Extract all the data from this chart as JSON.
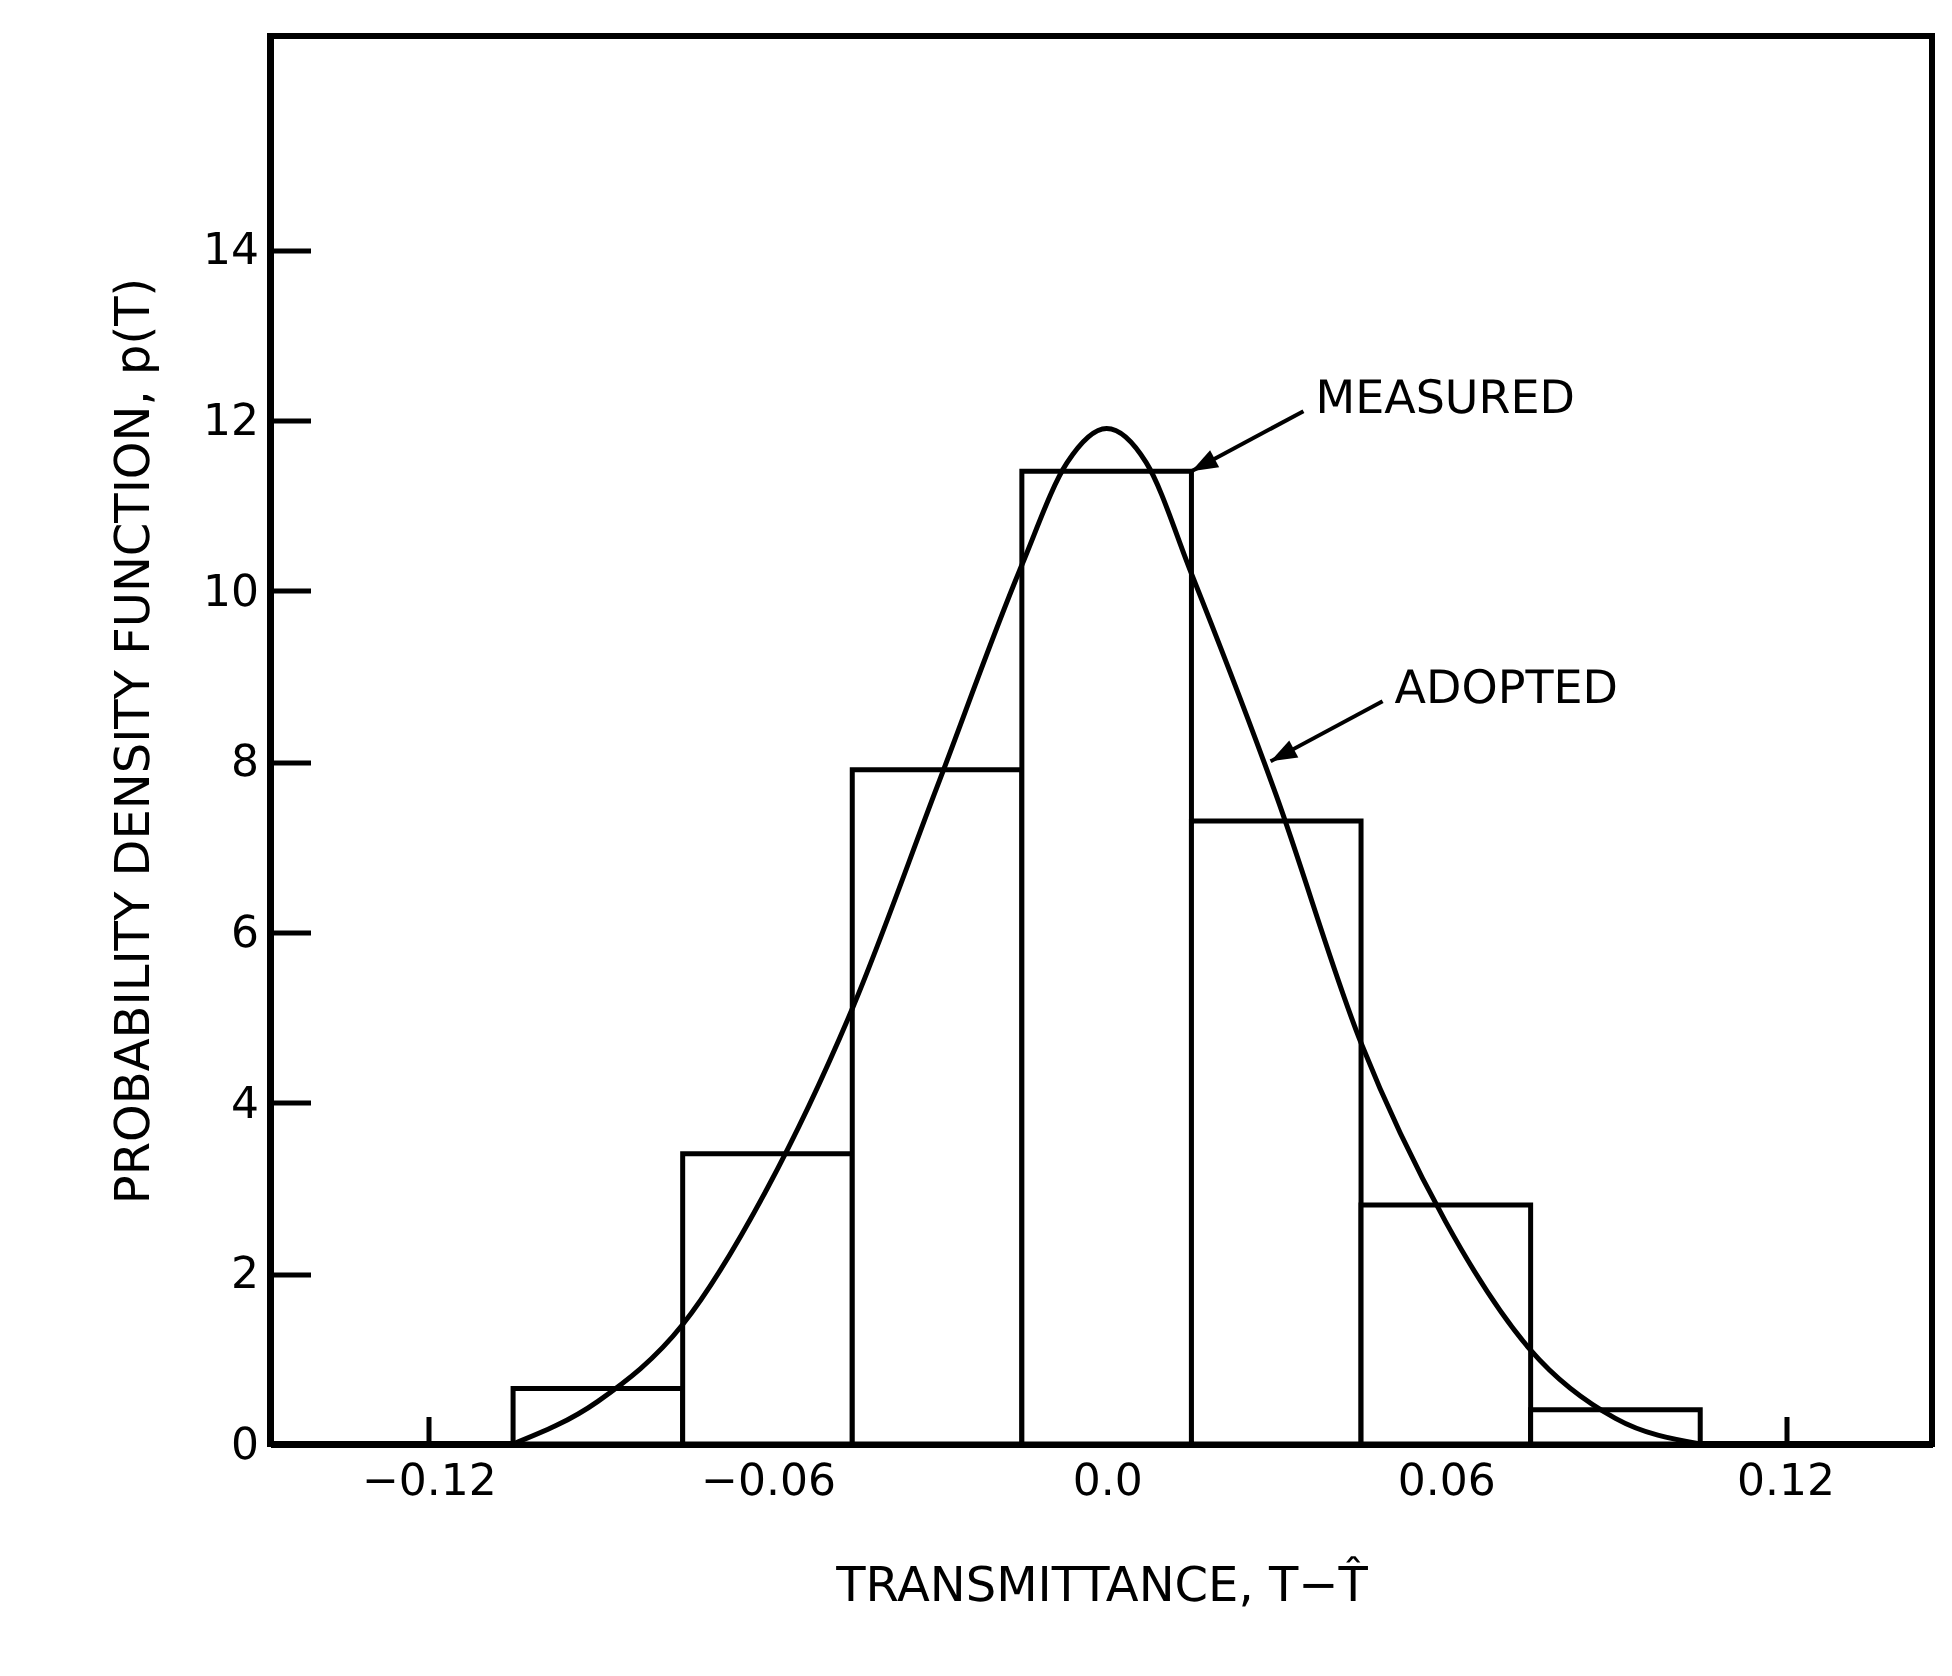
{
  "chart_data": {
    "type": "histogram",
    "xlabel": "TRANSMITTANCE, T−T̂",
    "ylabel": "PROBABILITY DENSITY FUNCTION, p(T)",
    "series": [
      {
        "color": "#000000",
        "bins": [
          -0.105,
          -0.075,
          -0.045,
          -0.015,
          0.015,
          0.045,
          0.075,
          0.105
        ],
        "values": [
          0.65,
          3.4,
          7.9,
          11.4,
          7.3,
          2.8,
          0.4
        ]
      },
      {
        "type": "line",
        "color": "#000000",
        "x": [
          -0.105,
          -0.09,
          -0.075,
          -0.06,
          -0.045,
          -0.03,
          -0.015,
          -0.007,
          0,
          0.007,
          0.015,
          0.03,
          0.045,
          0.06,
          0.075,
          0.09,
          0.105
        ],
        "values": [
          0.0,
          0.5,
          1.4,
          3.0,
          5.1,
          7.7,
          10.3,
          11.5,
          11.9,
          11.5,
          10.2,
          7.6,
          4.7,
          2.6,
          1.1,
          0.3,
          0.0
        ]
      }
    ],
    "xlim": [
      -0.148,
      0.146
    ],
    "xticks": [
      {
        "value": -0.12,
        "label": "−0.12"
      },
      {
        "value": -0.06,
        "label": "−0.06"
      },
      {
        "value": 0,
        "label": "0.0"
      },
      0.06,
      0.12
    ],
    "ylim": [
      0,
      16.5
    ],
    "yticks": [
      0,
      2,
      4,
      6,
      8,
      10,
      12,
      14
    ],
    "annotations": [
      {
        "text": "MEASURED",
        "x": 0.015,
        "y": 11.4
      },
      {
        "text": "ADOPTED",
        "x": 0.029,
        "y": 8.0
      }
    ],
    "marker": "none",
    "line_style": "solid"
  }
}
